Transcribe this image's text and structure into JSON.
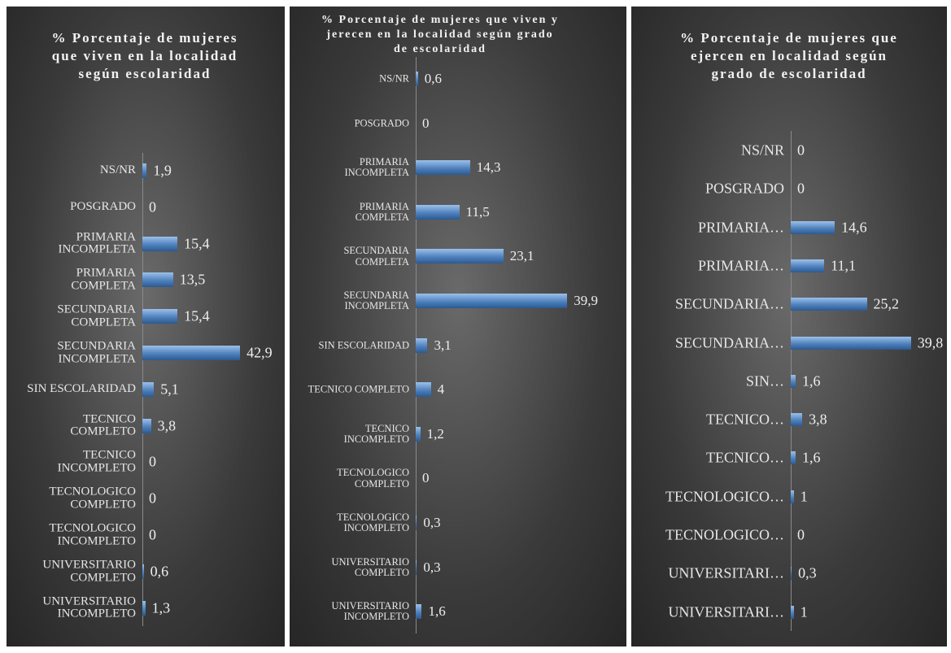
{
  "chart_data": [
    {
      "type": "bar",
      "title": "% Porcentaje de mujeres que viven en la localidad según escolaridad",
      "categories": [
        "NS/NR",
        "POSGRADO",
        "PRIMARIA INCOMPLETA",
        "PRIMARIA COMPLETA",
        "SECUNDARIA COMPLETA",
        "SECUNDARIA INCOMPLETA",
        "SIN ESCOLARIDAD",
        "TECNICO COMPLETO",
        "TECNICO INCOMPLETO",
        "TECNOLOGICO COMPLETO",
        "TECNOLOGICO INCOMPLETO",
        "UNIVERSITARIO COMPLETO",
        "UNIVERSITARIO INCOMPLETO"
      ],
      "values": [
        1.9,
        0,
        15.4,
        13.5,
        15.4,
        42.9,
        5.1,
        3.8,
        0,
        0,
        0,
        0.6,
        1.3
      ],
      "value_labels": [
        "1,9",
        "0",
        "15,4",
        "13,5",
        "15,4",
        "42,9",
        "5,1",
        "3,8",
        "0",
        "0",
        "0",
        "0,6",
        "1,3"
      ],
      "color": "#4f81bd",
      "xlim": [
        0,
        50
      ]
    },
    {
      "type": "bar",
      "title": "% Porcentaje de mujeres que viven y jerecen en la localidad según grado de escolaridad",
      "categories": [
        "NS/NR",
        "POSGRADO",
        "PRIMARIA INCOMPLETA",
        "PRIMARIA COMPLETA",
        "SECUNDARIA COMPLETA",
        "SECUNDARIA INCOMPLETA",
        "SIN ESCOLARIDAD",
        "TECNICO COMPLETO",
        "TECNICO INCOMPLETO",
        "TECNOLOGICO COMPLETO",
        "TECNOLOGICO INCOMPLETO",
        "UNIVERSITARIO COMPLETO",
        "UNIVERSITARIO INCOMPLETO"
      ],
      "values": [
        0.6,
        0,
        14.3,
        11.5,
        23.1,
        39.9,
        3.1,
        4,
        1.2,
        0,
        0.3,
        0.3,
        1.6
      ],
      "value_labels": [
        "0,6",
        "0",
        "14,3",
        "11,5",
        "23,1",
        "39,9",
        "3,1",
        "4",
        "1,2",
        "0",
        "0,3",
        "0,3",
        "1,6"
      ],
      "color": "#4f81bd",
      "xlim": [
        0,
        45
      ]
    },
    {
      "type": "bar",
      "title": "% Porcentaje de mujeres que ejercen en localidad según grado de escolaridad",
      "categories": [
        "NS/NR",
        "POSGRADO",
        "PRIMARIA…",
        "PRIMARIA…",
        "SECUNDARIA…",
        "SECUNDARIA…",
        "SIN…",
        "TECNICO…",
        "TECNICO…",
        "TECNOLOGICO…",
        "TECNOLOGICO…",
        "UNIVERSITARI…",
        "UNIVERSITARI…"
      ],
      "values": [
        0,
        0,
        14.6,
        11.1,
        25.2,
        39.8,
        1.6,
        3.8,
        1.6,
        1,
        0,
        0.3,
        1
      ],
      "value_labels": [
        "0",
        "0",
        "14,6",
        "11,1",
        "25,2",
        "39,8",
        "1,6",
        "3,8",
        "1,6",
        "1",
        "0",
        "0,3",
        "1"
      ],
      "color": "#4f81bd",
      "xlim": [
        0,
        45
      ]
    }
  ]
}
